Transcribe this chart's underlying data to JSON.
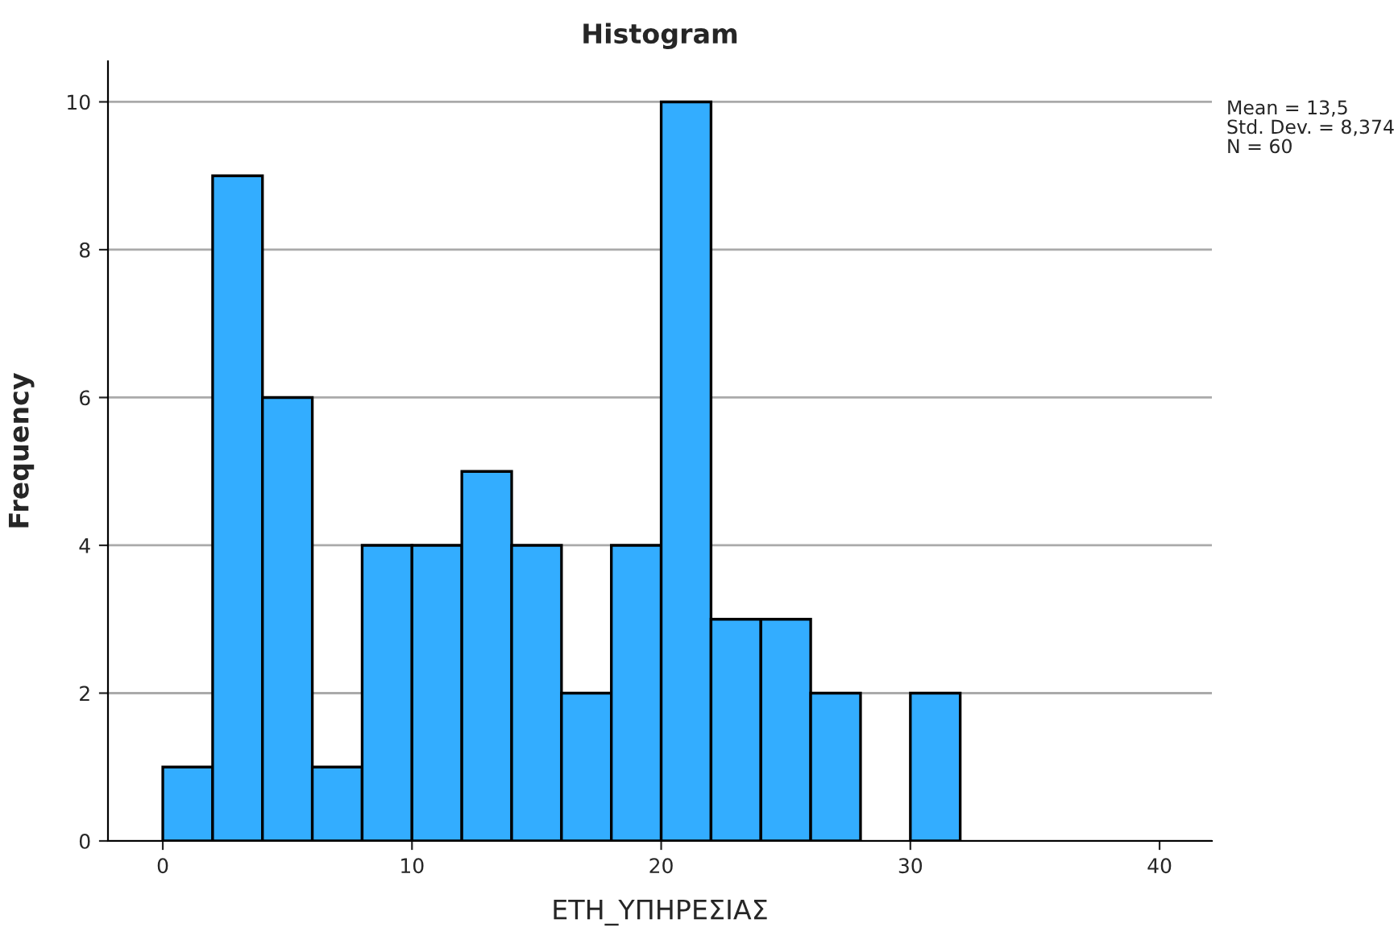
{
  "chart_data": {
    "type": "histogram",
    "title": "Histogram",
    "xlabel": "ΕΤΗ_ΥΠΗΡΕΣΙΑΣ",
    "ylabel": "Frequency",
    "bins": [
      0,
      2,
      4,
      6,
      8,
      10,
      12,
      14,
      16,
      18,
      20,
      22,
      24,
      26,
      28,
      30,
      32
    ],
    "values": [
      1,
      9,
      6,
      1,
      4,
      4,
      5,
      4,
      2,
      4,
      10,
      3,
      3,
      2,
      0,
      2
    ],
    "color": "#33adff",
    "xlim": [
      -2.2,
      42.1
    ],
    "ylim": [
      0,
      10.55
    ],
    "xticks": [
      0,
      10,
      20,
      30,
      40
    ],
    "yticks": [
      0,
      2,
      4,
      6,
      8,
      10
    ],
    "grid": "y",
    "annotations": [
      "Mean = 13,5",
      "Std. Dev. = 8,374",
      "N = 60"
    ]
  }
}
